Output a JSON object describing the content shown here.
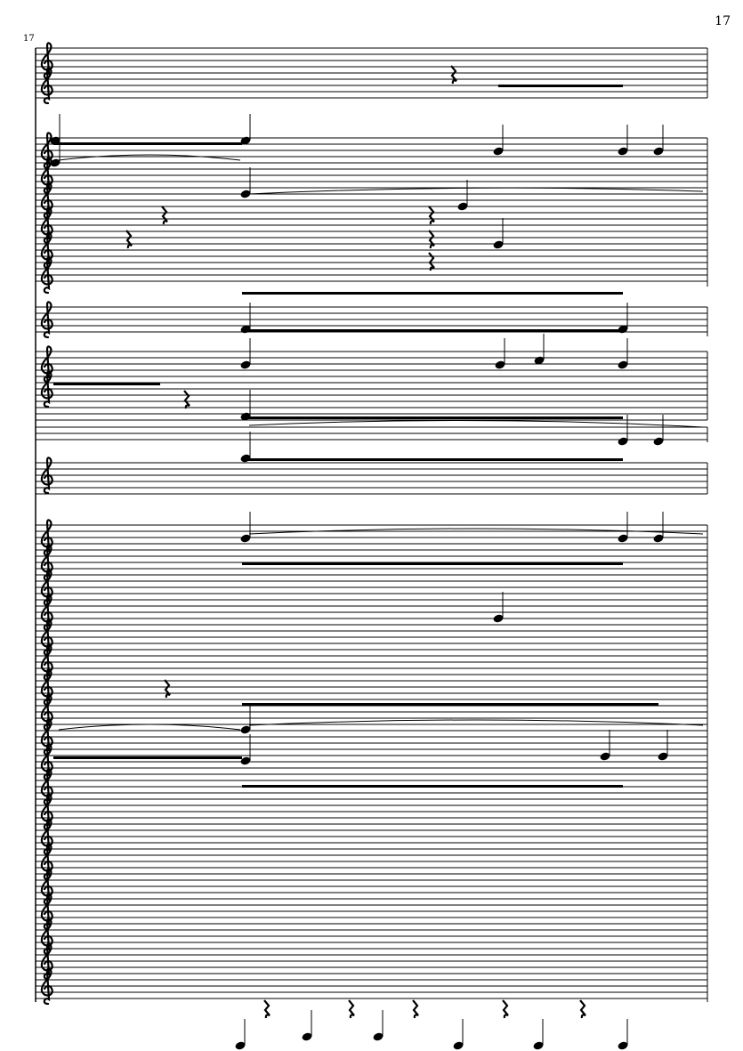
{
  "page": {
    "number": "17"
  },
  "score": {
    "measure_number": "17",
    "clef": "treble",
    "ink_color": "#000000",
    "background": "#ffffff"
  }
}
